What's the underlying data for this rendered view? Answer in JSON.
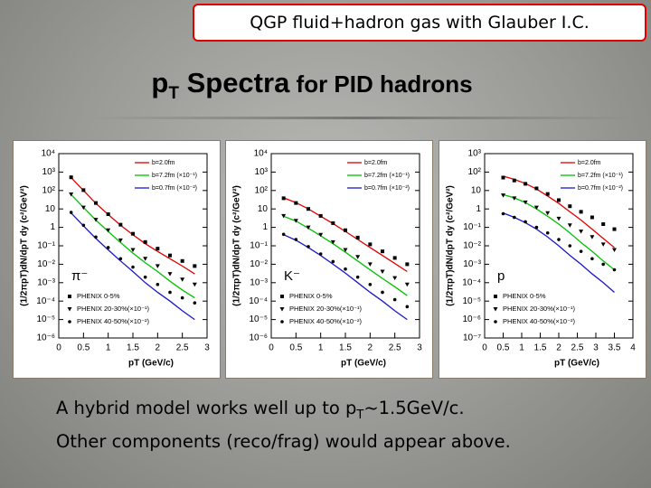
{
  "slide": {
    "banner": "QGP fluid+hadron gas with Glauber I.C.",
    "title": [
      "p",
      "T",
      " Spectra",
      " for PID hadrons"
    ],
    "notes": [
      [
        "A hybrid model works well up to p",
        "T",
        "~1.5GeV/c."
      ],
      [
        "Other components (reco/frag) would appear above."
      ]
    ]
  },
  "chart_data": [
    {
      "type": "line",
      "log_y": true,
      "annotation": "π⁻",
      "x_label": "pT (GeV/c)",
      "y_label": "(1/2πpT)dN/dpT dy (c²/GeV²)",
      "xlim": [
        0,
        3
      ],
      "xticks": [
        0,
        0.5,
        1,
        1.5,
        2,
        2.5,
        3
      ],
      "ylim": [
        1e-06,
        10000
      ],
      "yticks": [
        {
          "value": 1e-06,
          "label": "10⁻⁶"
        },
        {
          "value": 1e-05,
          "label": "10⁻⁵"
        },
        {
          "value": 0.0001,
          "label": "10⁻⁴"
        },
        {
          "value": 0.001,
          "label": "10⁻³"
        },
        {
          "value": 0.01,
          "label": "10⁻²"
        },
        {
          "value": 0.1,
          "label": "10⁻¹"
        },
        1,
        10,
        {
          "value": 100,
          "label": "10²"
        },
        {
          "value": 1000,
          "label": "10³"
        },
        {
          "value": 10000,
          "label": "10⁴"
        }
      ],
      "x": [
        0.25,
        0.5,
        0.75,
        1.0,
        1.25,
        1.5,
        1.75,
        2.0,
        2.25,
        2.5,
        2.75
      ],
      "series": [
        {
          "name": "b=2.0fm",
          "color": "#e00000",
          "marker": "line",
          "values": [
            500,
            100,
            20,
            5,
            1.3,
            0.4,
            0.13,
            0.05,
            0.02,
            0.008,
            0.003
          ]
        },
        {
          "name": "b=7.2fm (×10⁻¹)",
          "color": "#00c000",
          "marker": "line",
          "values": [
            60,
            12,
            2.5,
            0.6,
            0.15,
            0.04,
            0.012,
            0.004,
            0.0012,
            0.0004,
            0.00015
          ]
        },
        {
          "name": "b=0.7fm (×10⁻²)",
          "color": "#1818c8",
          "marker": "line",
          "values": [
            6,
            1.2,
            0.25,
            0.06,
            0.015,
            0.004,
            0.001,
            0.0003,
            0.0001,
            3e-05,
            1e-05
          ]
        },
        {
          "name": "PHENIX 0-5%",
          "color": "#000000",
          "marker": "square",
          "values": [
            520,
            105,
            21,
            5.2,
            1.4,
            0.45,
            0.16,
            0.07,
            0.03,
            0.015,
            0.008
          ]
        },
        {
          "name": "PHENIX 20-30%(×10⁻¹)",
          "color": "#000000",
          "marker": "triangle",
          "values": [
            62,
            12,
            2.6,
            0.7,
            0.2,
            0.06,
            0.02,
            0.008,
            0.003,
            0.0015,
            0.0008
          ]
        },
        {
          "name": "PHENIX 40-50%(×10⁻²)",
          "color": "#000000",
          "marker": "circle",
          "values": [
            6.5,
            1.3,
            0.3,
            0.08,
            0.02,
            0.007,
            0.002,
            0.0008,
            0.0003,
            0.00015,
            8e-05
          ]
        }
      ]
    },
    {
      "type": "line",
      "log_y": true,
      "annotation": "K⁻",
      "x_label": "pT (GeV/c)",
      "y_label": "(1/2πpT)dN/dpT dy (c²/GeV²)",
      "xlim": [
        0,
        3
      ],
      "xticks": [
        0,
        0.5,
        1,
        1.5,
        2,
        2.5,
        3
      ],
      "ylim": [
        1e-06,
        10000
      ],
      "yticks": [
        {
          "value": 1e-06,
          "label": "10⁻⁶"
        },
        {
          "value": 1e-05,
          "label": "10⁻⁵"
        },
        {
          "value": 0.0001,
          "label": "10⁻⁴"
        },
        {
          "value": 0.001,
          "label": "10⁻³"
        },
        {
          "value": 0.01,
          "label": "10⁻²"
        },
        {
          "value": 0.1,
          "label": "10⁻¹"
        },
        1,
        10,
        {
          "value": 100,
          "label": "10²"
        },
        {
          "value": 1000,
          "label": "10³"
        },
        {
          "value": 10000,
          "label": "10⁴"
        }
      ],
      "x": [
        0.25,
        0.5,
        0.75,
        1.0,
        1.25,
        1.5,
        1.75,
        2.0,
        2.25,
        2.5,
        2.75
      ],
      "series": [
        {
          "name": "b=2.0fm",
          "color": "#e00000",
          "marker": "line",
          "values": [
            40,
            22,
            10,
            4,
            1.6,
            0.6,
            0.22,
            0.08,
            0.03,
            0.011,
            0.004
          ]
        },
        {
          "name": "b=7.2fm (×10⁻¹)",
          "color": "#00c000",
          "marker": "line",
          "values": [
            4,
            2.2,
            0.9,
            0.35,
            0.13,
            0.045,
            0.015,
            0.005,
            0.0017,
            0.0006,
            0.0002
          ]
        },
        {
          "name": "b=0.7fm (×10⁻²)",
          "color": "#1818c8",
          "marker": "line",
          "values": [
            0.4,
            0.2,
            0.08,
            0.03,
            0.01,
            0.0033,
            0.001,
            0.0003,
            0.0001,
            3e-05,
            1e-05
          ]
        },
        {
          "name": "PHENIX 0-5%",
          "color": "#000000",
          "marker": "square",
          "values": [
            38,
            21,
            10,
            4.2,
            1.7,
            0.7,
            0.28,
            0.12,
            0.05,
            0.022,
            0.01
          ]
        },
        {
          "name": "PHENIX 20-30%(×10⁻¹)",
          "color": "#000000",
          "marker": "triangle",
          "values": [
            4.2,
            2.3,
            1,
            0.4,
            0.16,
            0.06,
            0.025,
            0.01,
            0.004,
            0.0018,
            0.0008
          ]
        },
        {
          "name": "PHENIX 40-50%(×10⁻²)",
          "color": "#000000",
          "marker": "circle",
          "values": [
            0.42,
            0.22,
            0.09,
            0.036,
            0.014,
            0.0055,
            0.002,
            0.0008,
            0.0003,
            0.00012,
            5e-05
          ]
        }
      ]
    },
    {
      "type": "line",
      "log_y": true,
      "annotation": "p",
      "x_label": "pT (GeV/c)",
      "y_label": "(1/2πpT)dN/dpT dy (c²/GeV²)",
      "xlim": [
        0,
        4
      ],
      "xticks": [
        0,
        0.5,
        1,
        1.5,
        2,
        2.5,
        3,
        3.5,
        4
      ],
      "ylim": [
        1e-07,
        1000
      ],
      "yticks": [
        {
          "value": 1e-07,
          "label": "10⁻⁷"
        },
        {
          "value": 1e-06,
          "label": "10⁻⁶"
        },
        {
          "value": 1e-05,
          "label": "10⁻⁵"
        },
        {
          "value": 0.0001,
          "label": "10⁻⁴"
        },
        {
          "value": 0.001,
          "label": "10⁻³"
        },
        {
          "value": 0.01,
          "label": "10⁻²"
        },
        {
          "value": 0.1,
          "label": "10⁻¹"
        },
        1,
        10,
        {
          "value": 100,
          "label": "10²"
        },
        {
          "value": 1000,
          "label": "10³"
        }
      ],
      "x": [
        0.5,
        0.8,
        1.1,
        1.4,
        1.7,
        2.0,
        2.3,
        2.6,
        2.9,
        3.2,
        3.5
      ],
      "series": [
        {
          "name": "b=2.0fm",
          "color": "#e00000",
          "marker": "line",
          "values": [
            60,
            40,
            24,
            12,
            5,
            2,
            0.7,
            0.25,
            0.08,
            0.025,
            0.008
          ]
        },
        {
          "name": "b=7.2fm (×10⁻¹)",
          "color": "#00c000",
          "marker": "line",
          "values": [
            6,
            4,
            2.2,
            1,
            0.4,
            0.15,
            0.05,
            0.015,
            0.005,
            0.0015,
            0.0005
          ]
        },
        {
          "name": "b=0.7fm (×10⁻²)",
          "color": "#1818c8",
          "marker": "line",
          "values": [
            0.6,
            0.35,
            0.18,
            0.08,
            0.03,
            0.01,
            0.003,
            0.001,
            0.0003,
            0.0001,
            3e-05
          ]
        },
        {
          "name": "PHENIX 0-5%",
          "color": "#000000",
          "marker": "square",
          "values": [
            50,
            35,
            23,
            13,
            6.5,
            3,
            1.4,
            0.7,
            0.35,
            0.15,
            0.08
          ]
        },
        {
          "name": "PHENIX 20-30%(×10⁻¹)",
          "color": "#000000",
          "marker": "triangle",
          "values": [
            5.5,
            3.8,
            2.3,
            1.2,
            0.6,
            0.3,
            0.13,
            0.06,
            0.03,
            0.012,
            0.006
          ]
        },
        {
          "name": "PHENIX 40-50%(×10⁻²)",
          "color": "#000000",
          "marker": "circle",
          "values": [
            0.55,
            0.35,
            0.2,
            0.1,
            0.05,
            0.022,
            0.01,
            0.005,
            0.002,
            0.001,
            0.0005
          ]
        }
      ]
    }
  ]
}
